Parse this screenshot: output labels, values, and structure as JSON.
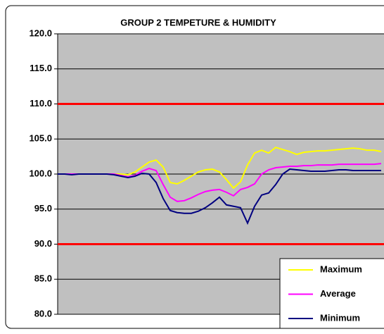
{
  "chart_data": {
    "type": "line",
    "title": "GROUP 2 TEMPETURE & HUMIDITY",
    "categories": [
      null,
      null,
      null,
      null,
      null,
      null,
      null,
      null,
      null,
      null,
      null,
      null,
      null,
      null,
      null,
      null,
      null,
      null,
      null,
      null,
      null,
      null,
      null,
      null,
      null,
      null,
      null,
      null,
      null,
      null,
      null,
      null,
      null,
      null,
      null,
      null,
      null,
      null,
      null,
      null,
      null,
      null,
      null,
      null,
      null,
      null,
      null
    ],
    "series": [
      {
        "name": "Maximum",
        "color": "#ffff00",
        "values": [
          100,
          100,
          100,
          100,
          100,
          100,
          100,
          100,
          100,
          100,
          99.9,
          100.3,
          101,
          101.7,
          102,
          101,
          98.8,
          98.6,
          99.1,
          99.7,
          100.3,
          100.6,
          100.7,
          100.3,
          99.2,
          98,
          98.9,
          101.3,
          103,
          103.4,
          103,
          103.8,
          103.5,
          103.2,
          102.8,
          103.1,
          103.2,
          103.3,
          103.3,
          103.4,
          103.5,
          103.6,
          103.7,
          103.6,
          103.4,
          103.4,
          103.2
        ]
      },
      {
        "name": "Average",
        "color": "#ff00ff",
        "values": [
          100,
          100,
          100,
          100,
          100,
          100,
          100,
          100,
          100,
          99.8,
          99.6,
          99.8,
          100.4,
          100.8,
          100.5,
          98.5,
          96.7,
          96.1,
          96.2,
          96.6,
          97.1,
          97.5,
          97.7,
          97.8,
          97.4,
          96.9,
          97.8,
          98.1,
          98.6,
          100,
          100.6,
          100.9,
          101,
          101.1,
          101.1,
          101.2,
          101.2,
          101.3,
          101.3,
          101.3,
          101.4,
          101.4,
          101.4,
          101.4,
          101.4,
          101.4,
          101.5
        ]
      },
      {
        "name": "Minimum",
        "color": "#000080",
        "values": [
          100,
          100,
          99.9,
          100,
          100,
          100,
          100,
          100,
          99.9,
          99.7,
          99.5,
          99.7,
          100.1,
          100,
          98.8,
          96.5,
          94.8,
          94.5,
          94.4,
          94.4,
          94.7,
          95.2,
          95.9,
          96.7,
          95.6,
          95.4,
          95.2,
          93,
          95.4,
          97,
          97.3,
          98.5,
          100,
          100.7,
          100.6,
          100.5,
          100.4,
          100.4,
          100.4,
          100.5,
          100.6,
          100.6,
          100.5,
          100.5,
          100.5,
          100.5,
          100.5
        ]
      }
    ],
    "reference_lines": [
      {
        "value": 110,
        "color": "#ff0000"
      },
      {
        "value": 90,
        "color": "#ff0000"
      }
    ],
    "ylim": [
      80,
      120
    ],
    "yticks": [
      {
        "value": 80,
        "label": "80.0"
      },
      {
        "value": 85,
        "label": "85.0"
      },
      {
        "value": 90,
        "label": "90.0"
      },
      {
        "value": 95,
        "label": "95.0"
      },
      {
        "value": 100,
        "label": "100.0"
      },
      {
        "value": 105,
        "label": "105.0"
      },
      {
        "value": 110,
        "label": "110.0"
      },
      {
        "value": 115,
        "label": "115.0"
      },
      {
        "value": 120,
        "label": "120.0"
      }
    ],
    "grid": true,
    "legend": "lower right",
    "plot_background": "#c0c0c0"
  }
}
